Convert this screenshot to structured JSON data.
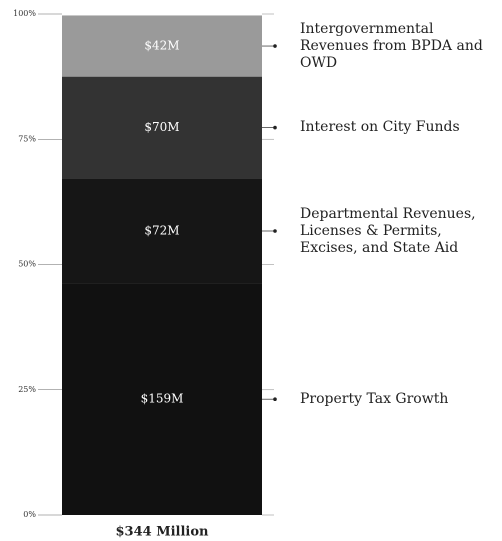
{
  "chart_data": {
    "type": "stacked-bar",
    "categories": [
      "$344 Million"
    ],
    "series": [
      {
        "name": "Property Tax Growth",
        "color": "#111111",
        "values": [
          159
        ],
        "value_labels": [
          "$159M"
        ]
      },
      {
        "name": "Departmental Revenues, Licenses & Permits, Excises, and State Aid",
        "color": "#161616",
        "values": [
          72
        ],
        "value_labels": [
          "$72M"
        ]
      },
      {
        "name": "Interest on City Funds",
        "color": "#333333",
        "values": [
          70
        ],
        "value_labels": [
          "$70M"
        ]
      },
      {
        "name": "Intergovernmental Revenues from BPDA and OWD",
        "color": "#9a9a9a",
        "values": [
          42
        ],
        "value_labels": [
          "$42M"
        ]
      }
    ],
    "ylim": [
      0,
      344
    ],
    "yticks": [
      {
        "value": 0,
        "label": "0%"
      },
      {
        "value": 86,
        "label": "25%"
      },
      {
        "value": 172,
        "label": "50%"
      },
      {
        "value": 258,
        "label": "75%"
      },
      {
        "value": 344,
        "label": "100%"
      }
    ]
  }
}
